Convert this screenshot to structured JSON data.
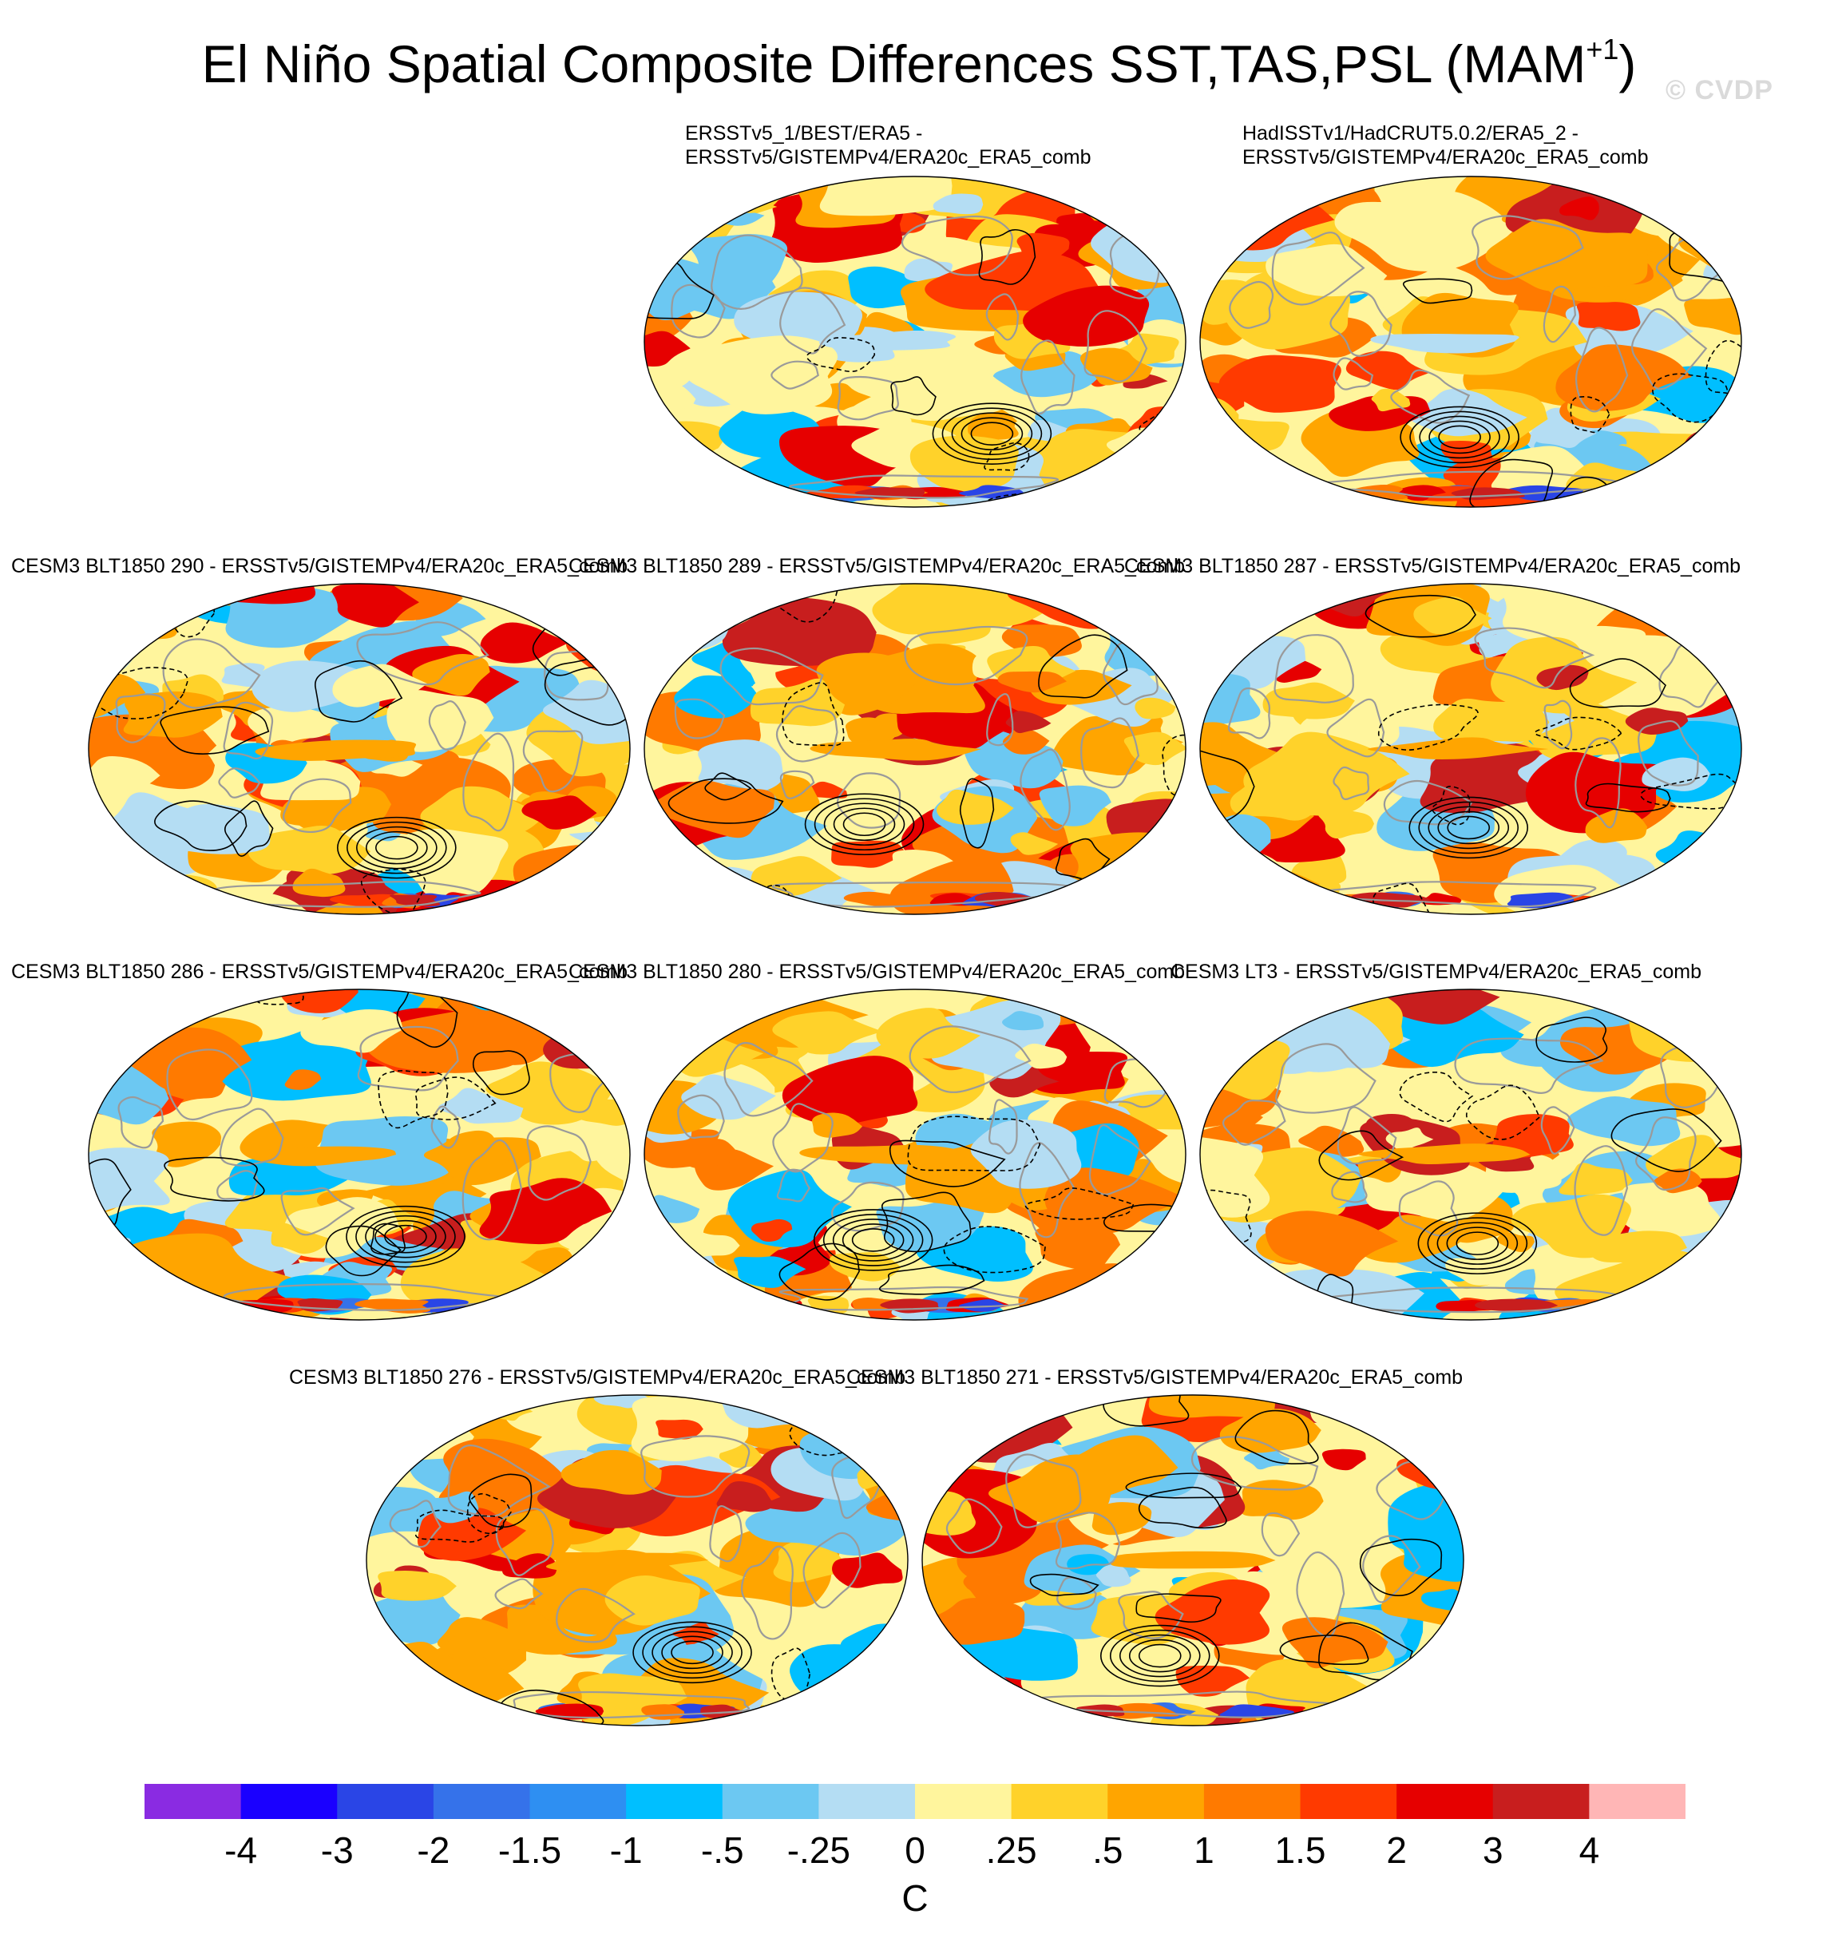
{
  "title_main": "El Niño Spatial Composite Differences SST,TAS,PSL (MAM",
  "title_sup": "+1",
  "title_end": ")",
  "watermark": "© CVDP",
  "panels": [
    {
      "title": "ERSSTv5_1/BEST/ERA5 -\nERSSTv5/GISTEMPv4/ERA20c_ERA5_comb"
    },
    {
      "title": "HadISSTv1/HadCRUT5.0.2/ERA5_2 -\nERSSTv5/GISTEMPv4/ERA20c_ERA5_comb"
    },
    {
      "title": "CESM3 BLT1850 290 - ERSSTv5/GISTEMPv4/ERA20c_ERA5_comb"
    },
    {
      "title": "CESM3 BLT1850 289 - ERSSTv5/GISTEMPv4/ERA20c_ERA5_comb"
    },
    {
      "title": "CESM3 BLT1850 287 - ERSSTv5/GISTEMPv4/ERA20c_ERA5_comb"
    },
    {
      "title": "CESM3 BLT1850 286 - ERSSTv5/GISTEMPv4/ERA20c_ERA5_comb"
    },
    {
      "title": "CESM3 BLT1850 280 - ERSSTv5/GISTEMPv4/ERA20c_ERA5_comb"
    },
    {
      "title": "CESM3 LT3 - ERSSTv5/GISTEMPv4/ERA20c_ERA5_comb"
    },
    {
      "title": "CESM3 BLT1850 276 - ERSSTv5/GISTEMPv4/ERA20c_ERA5_comb"
    },
    {
      "title": "CESM3 BLT1850 271 - ERSSTv5/GISTEMPv4/ERA20c_ERA5_comb"
    }
  ],
  "colorbar": {
    "units": "C",
    "labels": [
      "-4",
      "-3",
      "-2",
      "-1.5",
      "-1",
      "-.5",
      "-.25",
      "0",
      ".25",
      ".5",
      "1",
      "1.5",
      "2",
      "3",
      "4"
    ],
    "colors": [
      "#8a2be2",
      "#1a00ff",
      "#2a45e6",
      "#3572ea",
      "#2e8ff2",
      "#00bfff",
      "#6cc8f2",
      "#b4ddf3",
      "#fff59d",
      "#ffd22a",
      "#ffa500",
      "#ff7a00",
      "#ff3a00",
      "#e60000",
      "#c81e1e",
      "#ffb6b6"
    ]
  }
}
